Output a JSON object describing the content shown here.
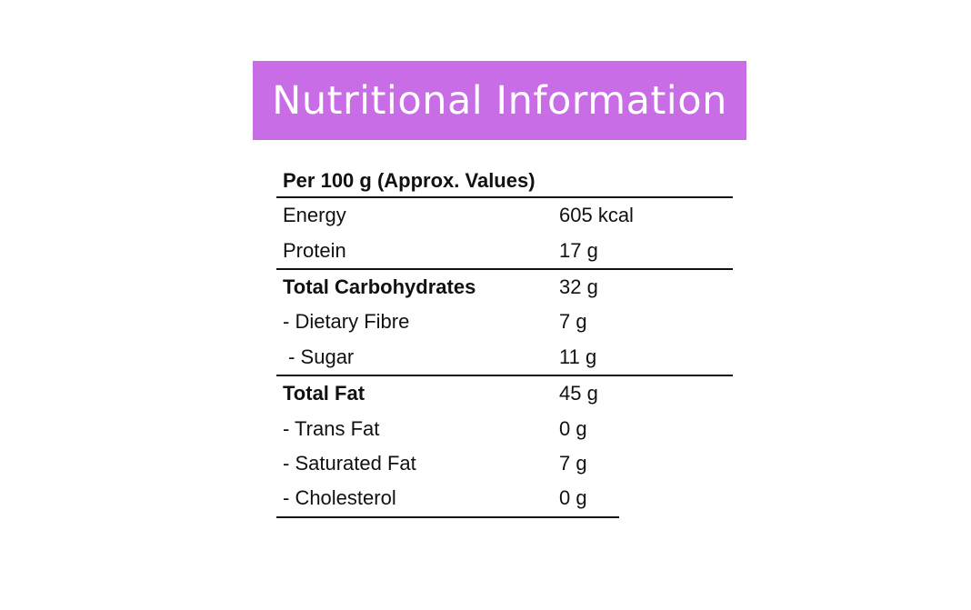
{
  "banner": {
    "title": "Nutritional Information",
    "background_color": "#c86de6",
    "text_color": "#ffffff"
  },
  "table": {
    "header": "Per 100 g (Approx. Values)",
    "sections": [
      {
        "rows": [
          {
            "label": "Energy",
            "value": "605 kcal",
            "bold": false
          },
          {
            "label": "Protein",
            "value": "17 g",
            "bold": false
          }
        ]
      },
      {
        "rows": [
          {
            "label": "Total Carbohydrates",
            "value": "32 g",
            "bold": true
          },
          {
            "label": "- Dietary Fibre",
            "value": "7 g",
            "bold": false
          },
          {
            "label": " - Sugar",
            "value": "11 g",
            "bold": false
          }
        ]
      },
      {
        "rows": [
          {
            "label": "Total Fat",
            "value": "45 g",
            "bold": true
          },
          {
            "label": "- Trans Fat",
            "value": "0 g",
            "bold": false
          },
          {
            "label": "- Saturated Fat",
            "value": "7 g",
            "bold": false
          },
          {
            "label": "- Cholesterol",
            "value": "0 g",
            "bold": false
          }
        ]
      }
    ]
  }
}
